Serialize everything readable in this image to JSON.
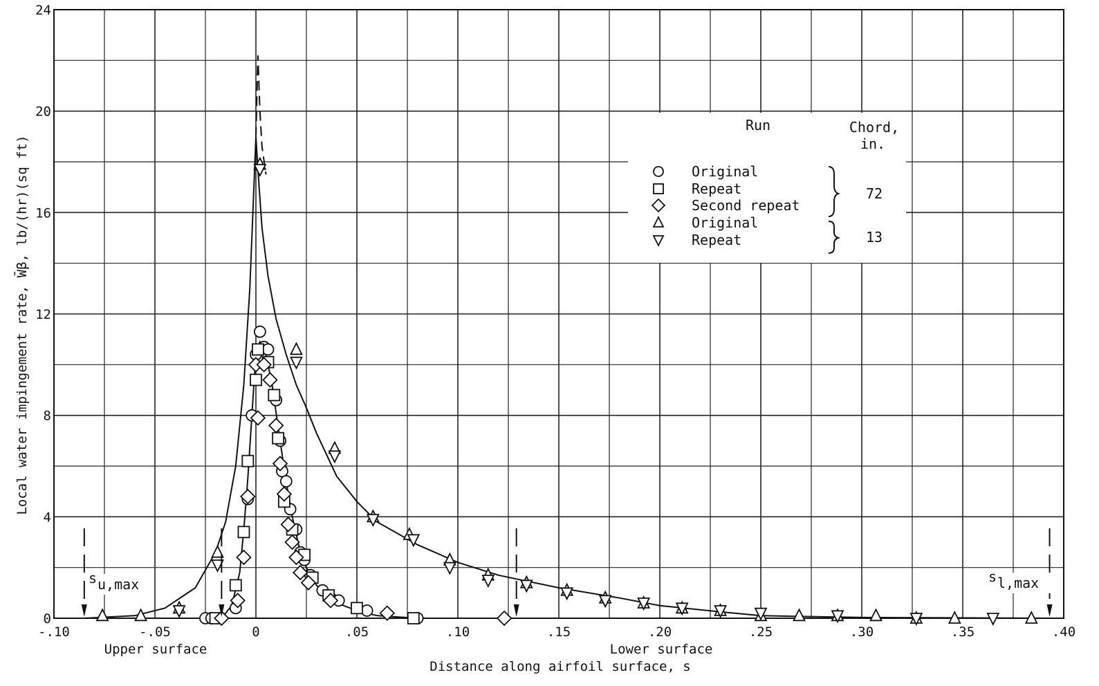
{
  "chart_data": {
    "type": "scatter",
    "title": "",
    "xlabel": "Distance along airfoil surface, s",
    "ylabel": "Local water impingement rate, W̄β, lb/(hr)(sq ft)",
    "xlim": [
      -0.1,
      0.4
    ],
    "ylim": [
      0,
      24
    ],
    "x_ticks": [
      {
        "value": -0.1,
        "label": "-.10"
      },
      {
        "value": -0.05,
        "label": "-.05"
      },
      {
        "value": 0.0,
        "label": "0"
      },
      {
        "value": 0.05,
        "label": ".05"
      },
      {
        "value": 0.1,
        "label": ".10"
      },
      {
        "value": 0.15,
        "label": ".15"
      },
      {
        "value": 0.2,
        "label": ".20"
      },
      {
        "value": 0.25,
        "label": ".25"
      },
      {
        "value": 0.3,
        "label": ".30"
      },
      {
        "value": 0.35,
        "label": ".35"
      },
      {
        "value": 0.4,
        "label": ".40"
      }
    ],
    "y_ticks": [
      {
        "value": 0,
        "label": "0"
      },
      {
        "value": 4,
        "label": "4"
      },
      {
        "value": 8,
        "label": "8"
      },
      {
        "value": 12,
        "label": "12"
      },
      {
        "value": 16,
        "label": "16"
      },
      {
        "value": 20,
        "label": "20"
      },
      {
        "value": 24,
        "label": "24"
      }
    ],
    "grid": true,
    "x_region_labels": {
      "upper": "Upper surface",
      "lower": "Lower surface"
    },
    "legend": {
      "placement": "upper-right",
      "header_run": "Run",
      "header_chord": "Chord,",
      "header_chord_unit": "in.",
      "groups": [
        {
          "chord": "72",
          "entries": [
            {
              "label": "Original",
              "marker": "circle"
            },
            {
              "label": "Repeat",
              "marker": "square"
            },
            {
              "label": "Second repeat",
              "marker": "diamond"
            }
          ]
        },
        {
          "chord": "13",
          "entries": [
            {
              "label": "Original",
              "marker": "triangle-up"
            },
            {
              "label": "Repeat",
              "marker": "triangle-down"
            }
          ]
        }
      ]
    },
    "annotations": [
      {
        "text_main": "s",
        "text_sub": "u,max",
        "x": -0.085,
        "direction": "down-arrow"
      },
      {
        "text_main": "s",
        "text_sub": "l,max",
        "x": 0.393,
        "direction": "down-arrow"
      }
    ],
    "marker_arrows_x": [
      -0.085,
      -0.017,
      0.129,
      0.393
    ],
    "series": [
      {
        "name": "Original",
        "chord": "72",
        "marker": "circle",
        "x": [
          -0.025,
          -0.022,
          -0.01,
          -0.004,
          -0.002,
          0.0,
          0.002,
          0.004,
          0.006,
          0.01,
          0.012,
          0.013,
          0.015,
          0.017,
          0.02,
          0.022,
          0.024,
          0.027,
          0.033,
          0.037,
          0.041,
          0.055,
          0.08
        ],
        "y": [
          0.0,
          0.0,
          0.4,
          4.7,
          8.0,
          10.4,
          11.3,
          10.7,
          10.6,
          8.6,
          7.0,
          5.8,
          5.4,
          4.3,
          3.5,
          2.6,
          2.3,
          1.7,
          1.1,
          0.8,
          0.7,
          0.3,
          0.0
        ]
      },
      {
        "name": "Repeat",
        "chord": "72",
        "marker": "square",
        "x": [
          -0.02,
          -0.01,
          -0.006,
          -0.004,
          0.0,
          0.001,
          0.006,
          0.009,
          0.011,
          0.014,
          0.018,
          0.024,
          0.028,
          0.036,
          0.05,
          0.078
        ],
        "y": [
          0.0,
          1.3,
          3.4,
          6.2,
          9.4,
          10.6,
          10.1,
          8.8,
          7.1,
          4.6,
          3.5,
          2.5,
          1.6,
          0.9,
          0.4,
          0.0
        ]
      },
      {
        "name": "Second repeat",
        "chord": "72",
        "marker": "diamond",
        "x": [
          -0.017,
          -0.009,
          -0.006,
          -0.004,
          0.0,
          0.001,
          0.004,
          0.007,
          0.01,
          0.012,
          0.014,
          0.016,
          0.018,
          0.02,
          0.022,
          0.026,
          0.037,
          0.065,
          0.123
        ],
        "y": [
          0.0,
          0.7,
          2.4,
          4.8,
          10.0,
          7.9,
          10.0,
          9.4,
          7.6,
          6.1,
          4.9,
          3.7,
          3.0,
          2.4,
          1.8,
          1.4,
          0.7,
          0.2,
          0.0
        ]
      },
      {
        "name": "Original",
        "chord": "13",
        "marker": "triangle-up",
        "x": [
          -0.076,
          -0.057,
          -0.038,
          -0.019,
          0.002,
          0.02,
          0.039,
          0.058,
          0.076,
          0.096,
          0.115,
          0.134,
          0.154,
          0.173,
          0.192,
          0.211,
          0.23,
          0.25,
          0.269,
          0.288,
          0.307,
          0.327,
          0.346,
          0.384
        ],
        "y": [
          0.1,
          0.1,
          0.4,
          2.6,
          17.9,
          10.6,
          6.7,
          4.0,
          3.3,
          2.3,
          1.7,
          1.4,
          1.1,
          0.8,
          0.6,
          0.4,
          0.3,
          0.1,
          0.1,
          0.1,
          0.1,
          0.0,
          0.0,
          0.0
        ]
      },
      {
        "name": "Repeat",
        "chord": "13",
        "marker": "triangle-down",
        "x": [
          -0.038,
          -0.019,
          0.002,
          0.02,
          0.039,
          0.058,
          0.078,
          0.096,
          0.115,
          0.134,
          0.154,
          0.173,
          0.192,
          0.211,
          0.23,
          0.25,
          0.288,
          0.327,
          0.365
        ],
        "y": [
          0.3,
          2.1,
          17.7,
          10.1,
          6.4,
          3.9,
          3.1,
          2.0,
          1.5,
          1.3,
          1.0,
          0.7,
          0.6,
          0.4,
          0.3,
          0.2,
          0.1,
          0.0,
          0.0
        ]
      }
    ],
    "curves": [
      {
        "fits": "13",
        "x": [
          -0.085,
          -0.06,
          -0.045,
          -0.03,
          -0.02,
          -0.015,
          -0.01,
          -0.006,
          -0.003,
          -0.001,
          0.0,
          0.001,
          0.003,
          0.006,
          0.01,
          0.015,
          0.02,
          0.025,
          0.03,
          0.04,
          0.05,
          0.06,
          0.08,
          0.1,
          0.12,
          0.15,
          0.18,
          0.2,
          0.23,
          0.25,
          0.3,
          0.393
        ],
        "y": [
          0.0,
          0.1,
          0.4,
          1.2,
          2.6,
          3.8,
          6.0,
          9.2,
          13.0,
          17.0,
          19.0,
          17.7,
          15.4,
          13.5,
          11.8,
          10.4,
          9.2,
          8.3,
          7.3,
          5.6,
          4.6,
          3.8,
          2.9,
          2.2,
          1.7,
          1.2,
          0.8,
          0.5,
          0.25,
          0.1,
          0.03,
          0.0
        ]
      },
      {
        "fits": "13-dashed-peak",
        "style": "dashed",
        "x": [
          0.0,
          0.001,
          0.002,
          0.003,
          0.005
        ],
        "y": [
          19.0,
          22.2,
          20.0,
          18.6,
          17.5
        ]
      },
      {
        "fits": "72",
        "x": [
          -0.017,
          -0.012,
          -0.008,
          -0.006,
          -0.004,
          -0.002,
          0.0,
          0.002,
          0.004,
          0.006,
          0.008,
          0.01,
          0.012,
          0.014,
          0.016,
          0.018,
          0.02,
          0.022,
          0.025,
          0.03,
          0.035,
          0.04,
          0.05,
          0.06,
          0.08
        ],
        "y": [
          0.0,
          0.5,
          1.8,
          3.5,
          5.5,
          8.0,
          10.4,
          10.9,
          10.7,
          10.0,
          9.2,
          8.1,
          7.0,
          5.9,
          4.9,
          4.0,
          3.3,
          2.6,
          2.0,
          1.3,
          0.9,
          0.6,
          0.3,
          0.1,
          0.0
        ]
      }
    ]
  }
}
